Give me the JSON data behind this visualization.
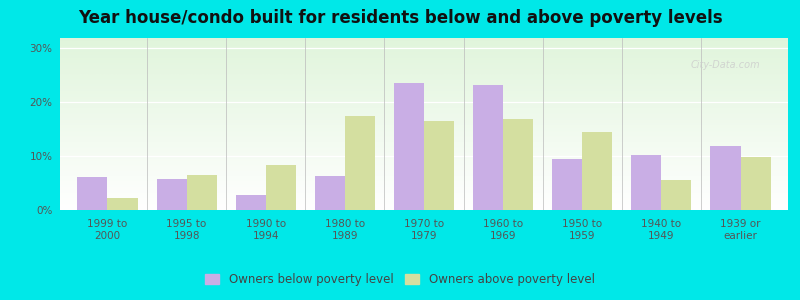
{
  "title": "Year house/condo built for residents below and above poverty levels",
  "categories": [
    "1999 to\n2000",
    "1995 to\n1998",
    "1990 to\n1994",
    "1980 to\n1989",
    "1970 to\n1979",
    "1960 to\n1969",
    "1950 to\n1959",
    "1940 to\n1949",
    "1939 or\nearlier"
  ],
  "below_poverty": [
    6.2,
    5.8,
    2.8,
    6.3,
    23.5,
    23.2,
    9.5,
    10.2,
    11.8
  ],
  "above_poverty": [
    2.3,
    6.5,
    8.3,
    17.5,
    16.5,
    16.8,
    14.5,
    5.5,
    9.8
  ],
  "below_color": "#c9aee5",
  "above_color": "#d4dfa0",
  "outer_bg": "#00e8e8",
  "yticks": [
    0,
    10,
    20,
    30
  ],
  "ylim": [
    0,
    32
  ],
  "bar_width": 0.38,
  "legend_below": "Owners below poverty level",
  "legend_above": "Owners above poverty level",
  "title_fontsize": 12,
  "tick_fontsize": 7.5,
  "legend_fontsize": 8.5
}
